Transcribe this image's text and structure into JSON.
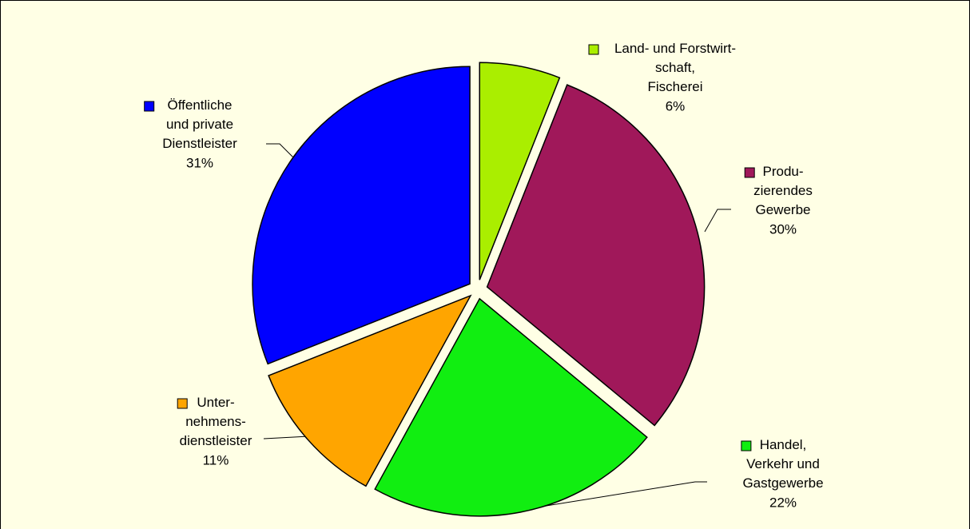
{
  "chart_data": {
    "type": "pie",
    "categories": [
      "Land- und Forstwirt-\nschaft,\nFischerei",
      "Produ-\nzierendes\nGewerbe",
      "Handel,\nVerkehr und\nGastgewerbe",
      "Unter-\nnehmens-\ndienstleister",
      "Öffentliche\nund private\nDienstleister"
    ],
    "values": [
      6,
      30,
      22,
      11,
      31
    ],
    "value_labels": [
      "6%",
      "30%",
      "22%",
      "11%",
      "31%"
    ],
    "colors": [
      "#aaee00",
      "#a0185a",
      "#11ee11",
      "#ffa500",
      "#0000ff"
    ]
  }
}
